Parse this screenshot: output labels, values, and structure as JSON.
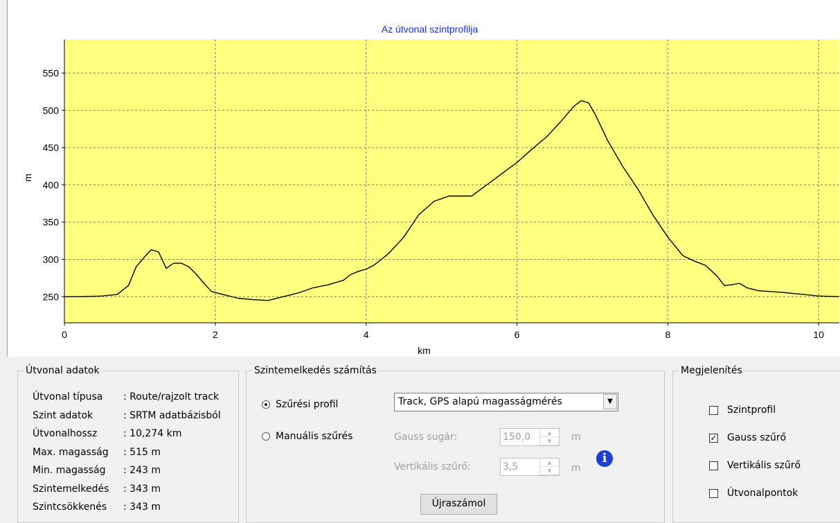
{
  "chart_data": {
    "type": "area",
    "title": "Az útvonal szintprofilja",
    "xlabel": "km",
    "ylabel": "m",
    "xlim": [
      0,
      10.274
    ],
    "ylim": [
      215,
      595
    ],
    "x_ticks": [
      0,
      2,
      4,
      6,
      8,
      10
    ],
    "y_ticks": [
      250,
      300,
      350,
      400,
      450,
      500,
      550
    ],
    "grid": true,
    "background_color": "#ffff80",
    "line_color": "#000000",
    "series": [
      {
        "x": [
          0,
          0.2,
          0.5,
          0.7,
          0.85,
          0.95,
          1.05,
          1.15,
          1.25,
          1.35,
          1.45,
          1.55,
          1.65,
          1.75,
          1.85,
          1.95,
          2.1,
          2.3,
          2.5,
          2.7,
          2.9,
          3.1,
          3.3,
          3.5,
          3.7,
          3.8,
          3.9,
          4.0,
          4.1,
          4.3,
          4.5,
          4.7,
          4.9,
          5.1,
          5.4,
          5.6,
          5.8,
          6.0,
          6.2,
          6.4,
          6.6,
          6.75,
          6.85,
          6.95,
          7.05,
          7.2,
          7.4,
          7.6,
          7.8,
          8.0,
          8.2,
          8.35,
          8.5,
          8.65,
          8.75,
          8.85,
          8.95,
          9.05,
          9.2,
          9.5,
          9.8,
          10.0,
          10.274
        ],
        "y": [
          250,
          250,
          251,
          253,
          265,
          290,
          302,
          313,
          310,
          288,
          295,
          295,
          290,
          280,
          268,
          257,
          253,
          248,
          246,
          245,
          250,
          255,
          262,
          266,
          272,
          280,
          284,
          287,
          292,
          308,
          330,
          360,
          378,
          385,
          385,
          400,
          415,
          430,
          448,
          465,
          487,
          505,
          513,
          510,
          492,
          460,
          425,
          395,
          360,
          330,
          305,
          298,
          292,
          278,
          265,
          266,
          268,
          262,
          258,
          256,
          253,
          251,
          250
        ]
      }
    ]
  },
  "route_group": {
    "title": "Útvonal adatok",
    "rows": [
      {
        "label": "Útvonal típusa",
        "value": ": Route/rajzolt track"
      },
      {
        "label": "Szint adatok",
        "value": ": SRTM adatbázisból"
      },
      {
        "label": "Útvonalhossz",
        "value": ": 10,274 km"
      },
      {
        "label": "Max. magasság",
        "value": ": 515 m"
      },
      {
        "label": "Min. magasság",
        "value": ": 243 m"
      },
      {
        "label": "Szintemelkedés",
        "value": ": 343 m"
      },
      {
        "label": "Szintcsökkenés",
        "value": ": 343 m"
      }
    ]
  },
  "calc_group": {
    "title": "Szintemelkedés számítás",
    "radio_filter_profile": "Szűrési profil",
    "radio_manual": "Manuális szűrés",
    "profile_select": "Track, GPS alapú magasságmérés",
    "gauss_label": "Gauss sugár:",
    "gauss_value": "150,0",
    "gauss_unit": "m",
    "vertical_label": "Vertikális szűrő:",
    "vertical_value": "3,5",
    "vertical_unit": "m",
    "recalc_button": "Újraszámol"
  },
  "display_group": {
    "title": "Megjelenítés",
    "items": [
      {
        "label": "Szintprofil",
        "checked": false
      },
      {
        "label": "Gauss szűrő",
        "checked": true
      },
      {
        "label": "Vertikális szűrő",
        "checked": false
      },
      {
        "label": "Útvonalpontok",
        "checked": false
      }
    ]
  }
}
